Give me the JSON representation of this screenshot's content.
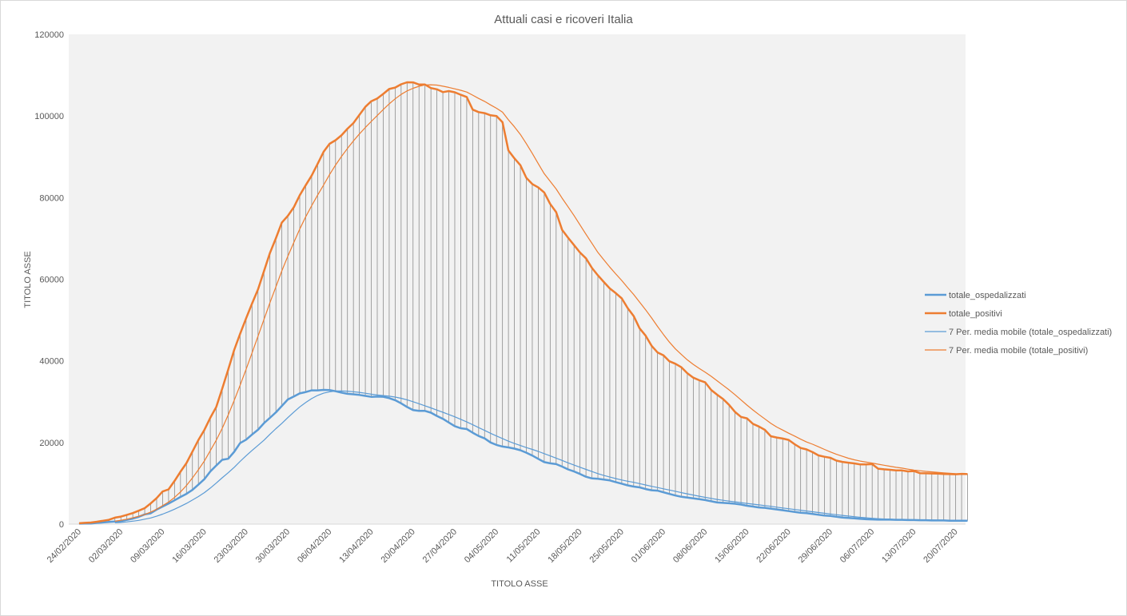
{
  "chart_data": {
    "type": "line",
    "title": "Attuali casi e ricoveri Italia",
    "xlabel": "TITOLO ASSE",
    "ylabel": "TITOLO ASSE",
    "ylim": [
      0,
      120000
    ],
    "y_ticks": [
      0,
      20000,
      40000,
      60000,
      80000,
      100000,
      120000
    ],
    "start_date": "24/02/2020",
    "x_tick_labels": [
      "24/02/2020",
      "02/03/2020",
      "09/03/2020",
      "16/03/2020",
      "23/03/2020",
      "30/03/2020",
      "06/04/2020",
      "13/04/2020",
      "20/04/2020",
      "27/04/2020",
      "04/05/2020",
      "11/05/2020",
      "18/05/2020",
      "25/05/2020",
      "01/06/2020",
      "08/06/2020",
      "15/06/2020",
      "22/06/2020",
      "29/06/2020",
      "06/07/2020",
      "13/07/2020",
      "20/07/2020"
    ],
    "x_tick_every_days": 7,
    "legend_position": "right",
    "high_low_lines": true,
    "series": [
      {
        "name": "totale_ospedalizzati",
        "color": "#5b9bd5",
        "style": "thick",
        "values": [
          127,
          150,
          164,
          304,
          409,
          534,
          639,
          742,
          1034,
          1346,
          1790,
          2394,
          2651,
          3557,
          4316,
          5038,
          5838,
          6650,
          7426,
          8372,
          9663,
          11025,
          12894,
          14363,
          15757,
          16020,
          17708,
          19846,
          20692,
          21937,
          23112,
          24753,
          26029,
          27386,
          28949,
          30532,
          31292,
          32021,
          32362,
          32766,
          32773,
          32888,
          32855,
          32561,
          32224,
          31927,
          31811,
          31650,
          31412,
          31189,
          31242,
          31211,
          30877,
          30355,
          29592,
          28707,
          27954,
          27767,
          27742,
          27317,
          26500,
          25800,
          24900,
          24000,
          23500,
          23300,
          22400,
          21600,
          21000,
          20000,
          19400,
          19000,
          18800,
          18500,
          18100,
          17500,
          16800,
          16000,
          15200,
          14900,
          14700,
          14100,
          13400,
          12900,
          12300,
          11600,
          11200,
          11100,
          10900,
          10700,
          10300,
          9900,
          9500,
          9200,
          9000,
          8600,
          8300,
          8200,
          7800,
          7400,
          7000,
          6700,
          6500,
          6300,
          6100,
          5900,
          5600,
          5300,
          5200,
          5100,
          5000,
          4800,
          4500,
          4300,
          4100,
          4000,
          3800,
          3600,
          3400,
          3200,
          3000,
          2800,
          2700,
          2500,
          2300,
          2100,
          2000,
          1800,
          1600,
          1500,
          1400,
          1300,
          1200,
          1150,
          1100,
          1100,
          1100,
          1050,
          1050,
          1000,
          1000,
          950,
          950,
          900,
          900,
          900,
          850,
          850,
          850,
          850
        ]
      },
      {
        "name": "totale_positivi",
        "color": "#ed7d31",
        "style": "thick",
        "values": [
          221,
          311,
          385,
          588,
          821,
          1049,
          1577,
          1835,
          2263,
          2706,
          3296,
          3916,
          5061,
          6387,
          7985,
          8514,
          10590,
          12839,
          14955,
          17750,
          20603,
          23073,
          26062,
          28710,
          33190,
          37860,
          42681,
          46638,
          50418,
          54030,
          57521,
          62013,
          66414,
          70065,
          73880,
          75528,
          77635,
          80572,
          83049,
          85388,
          88274,
          91246,
          93187,
          94067,
          95262,
          96877,
          98273,
          100269,
          102253,
          103616,
          104291,
          105418,
          106607,
          106962,
          107771,
          108257,
          108237,
          107709,
          107699,
          106848,
          106527,
          105847,
          106103,
          105813,
          105205,
          104657,
          101551,
          100943,
          100704,
          100179,
          99980,
          98467,
          91528,
          89624,
          87961,
          84842,
          83324,
          82488,
          81266,
          78457,
          76440,
          72070,
          70187,
          68351,
          66553,
          65129,
          62752,
          60960,
          59322,
          57752,
          56594,
          55300,
          52942,
          50966,
          47986,
          46175,
          43691,
          42075,
          41367,
          39893,
          39297,
          38429,
          36976,
          35877,
          35262,
          34730,
          32872,
          31710,
          30637,
          29222,
          27485,
          26274,
          25909,
          24569,
          23925,
          23101,
          21543,
          21212,
          20972,
          20637,
          19573,
          18655,
          18303,
          17638,
          16836,
          16496,
          16244,
          15563,
          15255,
          15060,
          14884,
          14621,
          14642,
          14709,
          13595,
          13428,
          13303,
          13179,
          13157,
          12919,
          12994,
          12493,
          12456,
          12404,
          12368,
          12301,
          12248,
          12209,
          12322,
          12248
        ]
      },
      {
        "name": "7 Per. media mobile (totale_ospedalizzati)",
        "color": "#5b9bd5",
        "style": "thin",
        "moving_average_of": 0,
        "period": 7
      },
      {
        "name": "7 Per. media mobile (totale_positivi)",
        "color": "#ed7d31",
        "style": "thin",
        "moving_average_of": 1,
        "period": 7
      }
    ]
  }
}
